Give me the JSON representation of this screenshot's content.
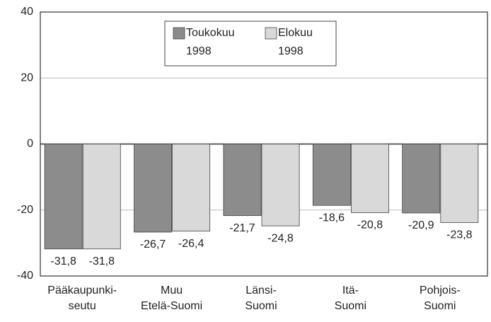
{
  "chart_data": {
    "type": "bar",
    "categories": [
      "Pääkaupunki-\nseutu",
      "Muu\nEtelä-Suomi",
      "Länsi-\nSuomi",
      "Itä-\nSuomi",
      "Pohjois-\nSuomi"
    ],
    "series": [
      {
        "name": "Toukokuu\n1998",
        "color": "#8c8c8c",
        "values": [
          -31.8,
          -26.7,
          -21.7,
          -18.6,
          -20.9
        ],
        "value_labels": [
          "-31,8",
          "-26,7",
          "-21,7",
          "-18,6",
          "-20,9"
        ]
      },
      {
        "name": "Elokuu\n1998",
        "color": "#d9d9d9",
        "values": [
          -31.8,
          -26.4,
          -24.8,
          -20.8,
          -23.8
        ],
        "value_labels": [
          "-31,8",
          "-26,4",
          "-24,8",
          "-20,8",
          "-23,8"
        ]
      }
    ],
    "ylim": [
      -40,
      40
    ],
    "yticks": [
      40,
      20,
      0,
      -20,
      -40
    ],
    "grid": true
  }
}
